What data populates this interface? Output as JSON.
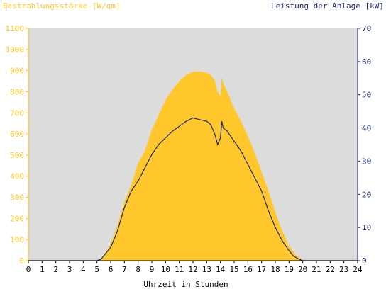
{
  "chart_data": {
    "type": "area",
    "left_title": "Bestrahlungsstärke [W/qm]",
    "right_title": "Leistung der Anlage [kW]",
    "xlabel": "Uhrzeit in Stunden",
    "xlim": [
      0,
      24
    ],
    "ylim_left": [
      0,
      1100
    ],
    "ylim_right": [
      0,
      70
    ],
    "x_ticks": [
      0,
      1,
      2,
      3,
      4,
      5,
      6,
      7,
      8,
      9,
      10,
      11,
      12,
      13,
      14,
      15,
      16,
      17,
      18,
      19,
      20,
      21,
      22,
      23,
      24
    ],
    "left_ticks": [
      0,
      100,
      200,
      300,
      400,
      500,
      600,
      700,
      800,
      900,
      1000,
      1100
    ],
    "right_ticks": [
      0,
      10,
      20,
      30,
      40,
      50,
      60,
      70
    ],
    "colors": {
      "irradiance": "#ffc72c",
      "power": "#1c2a6b",
      "plot_bg": "#dcdcdc",
      "left_axis": "#f7c32a",
      "right_axis": "#1c2a6b"
    },
    "series": [
      {
        "name": "Bestrahlungsstärke",
        "axis": "left",
        "style": "filled-area",
        "x": [
          0,
          5,
          5.2,
          5.5,
          6,
          6.5,
          7,
          7.5,
          8,
          8.5,
          9,
          9.5,
          10,
          10.5,
          11,
          11.5,
          12,
          12.5,
          13,
          13.3,
          13.6,
          13.8,
          14,
          14.1,
          14.2,
          14.5,
          15,
          15.5,
          16,
          16.5,
          17,
          17.5,
          18,
          18.5,
          19,
          19.5,
          20,
          20.2,
          24
        ],
        "values": [
          0,
          0,
          5,
          25,
          80,
          170,
          280,
          360,
          460,
          520,
          620,
          690,
          760,
          810,
          850,
          880,
          895,
          895,
          890,
          880,
          850,
          800,
          780,
          870,
          840,
          800,
          720,
          660,
          590,
          510,
          420,
          330,
          230,
          140,
          70,
          25,
          5,
          0,
          0
        ]
      },
      {
        "name": "Leistung der Anlage",
        "axis": "right",
        "style": "line",
        "x": [
          0,
          5,
          5.3,
          5.6,
          6,
          6.5,
          7,
          7.5,
          8,
          8.5,
          9,
          9.5,
          10,
          10.5,
          11,
          11.5,
          12,
          12.5,
          13,
          13.3,
          13.6,
          13.8,
          14,
          14.1,
          14.2,
          14.5,
          15,
          15.5,
          16,
          16.5,
          17,
          17.5,
          18,
          18.5,
          19,
          19.3,
          19.7,
          20,
          20.2,
          24
        ],
        "values": [
          0,
          0,
          0.5,
          2,
          4,
          9,
          16,
          21,
          24,
          28,
          32,
          35,
          37,
          39,
          40.5,
          42,
          43,
          42.5,
          42,
          41,
          38,
          35,
          37,
          42,
          40,
          39,
          36,
          33,
          29,
          25,
          21,
          15,
          10,
          6,
          3,
          1.5,
          0.5,
          0,
          0,
          0
        ]
      }
    ]
  }
}
